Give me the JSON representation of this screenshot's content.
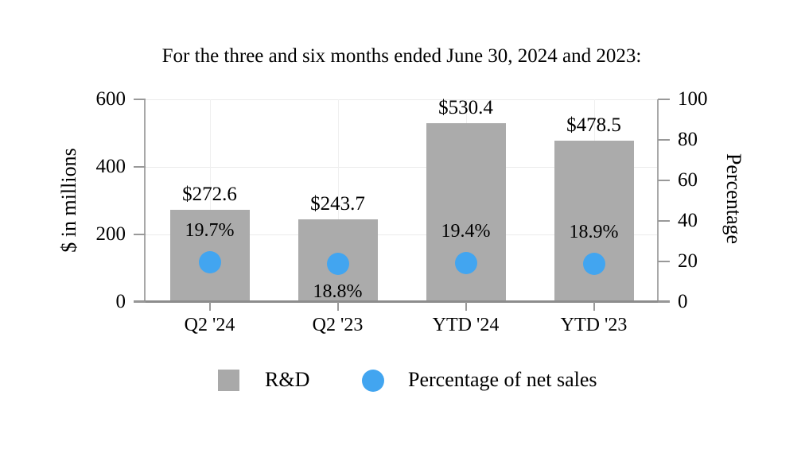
{
  "chart_data": {
    "type": "bar",
    "title": "For the three and six months ended June 30, 2024 and 2023:",
    "categories": [
      "Q2 '24",
      "Q2 '23",
      "YTD '24",
      "YTD '23"
    ],
    "series": [
      {
        "name": "R&D",
        "type": "bar",
        "axis": "left",
        "values": [
          272.6,
          243.7,
          530.4,
          478.5
        ],
        "labels": [
          "$272.6",
          "$243.7",
          "$530.4",
          "$478.5"
        ],
        "color": "#ababab"
      },
      {
        "name": "Percentage of net sales",
        "type": "point",
        "axis": "right",
        "values": [
          19.7,
          18.8,
          19.4,
          18.9
        ],
        "labels": [
          "19.7%",
          "18.8%",
          "19.4%",
          "18.9%"
        ],
        "label_positions": [
          "above",
          "below",
          "above",
          "above"
        ],
        "color": "#42a5f0"
      }
    ],
    "left_axis": {
      "label": "$ in millions",
      "min": 0,
      "max": 600,
      "ticks": [
        0,
        200,
        400,
        600
      ]
    },
    "right_axis": {
      "label": "Percentage",
      "min": 0,
      "max": 100,
      "ticks": [
        0,
        20,
        40,
        60,
        80,
        100
      ]
    },
    "legend": [
      {
        "label": "R&D",
        "swatch": "square",
        "color": "#a9a9a9"
      },
      {
        "label": "Percentage of net sales",
        "swatch": "circle",
        "color": "#42a5f0"
      }
    ],
    "grid": {
      "horizontal": true,
      "vertical": true
    },
    "legend_position": "bottom"
  }
}
